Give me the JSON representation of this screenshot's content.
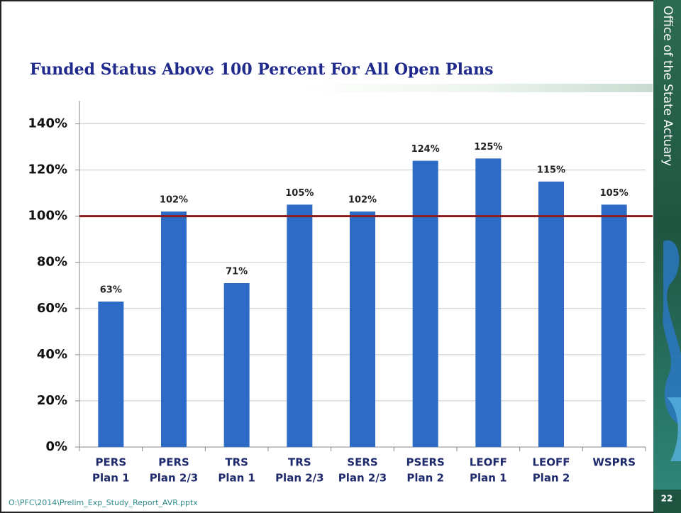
{
  "chart_data": {
    "type": "bar",
    "title": "Funded Status Above 100 Percent For All Open Plans",
    "categories": [
      [
        "PERS",
        "Plan 1"
      ],
      [
        "PERS",
        "Plan 2/3"
      ],
      [
        "TRS",
        "Plan 1"
      ],
      [
        "TRS",
        "Plan 2/3"
      ],
      [
        "SERS",
        "Plan 2/3"
      ],
      [
        "PSERS",
        "Plan 2"
      ],
      [
        "LEOFF",
        "Plan 1"
      ],
      [
        "LEOFF",
        "Plan 2"
      ],
      [
        "WSPRS"
      ]
    ],
    "values": [
      63,
      102,
      71,
      105,
      102,
      124,
      125,
      115,
      105
    ],
    "value_labels": [
      "63%",
      "102%",
      "71%",
      "105%",
      "102%",
      "124%",
      "125%",
      "115%",
      "105%"
    ],
    "color": "#2e6bc6",
    "ylim": [
      0,
      150
    ],
    "yticks": [
      {
        "value": 0,
        "label": "0%"
      },
      {
        "value": 20,
        "label": "20%"
      },
      {
        "value": 40,
        "label": "40%"
      },
      {
        "value": 60,
        "label": "60%"
      },
      {
        "value": 80,
        "label": "80%"
      },
      {
        "value": 100,
        "label": "100%"
      },
      {
        "value": 120,
        "label": "120%"
      },
      {
        "value": 140,
        "label": "140%"
      }
    ],
    "grid": true,
    "reference_line": 100,
    "reference_color": "#8b1a1a"
  },
  "sidebar": {
    "text": "Office of the State Actuary",
    "page_number": "22"
  },
  "footer": "O:\\PFC\\2014\\Prelim_Exp_Study_Report_AVR.pptx"
}
